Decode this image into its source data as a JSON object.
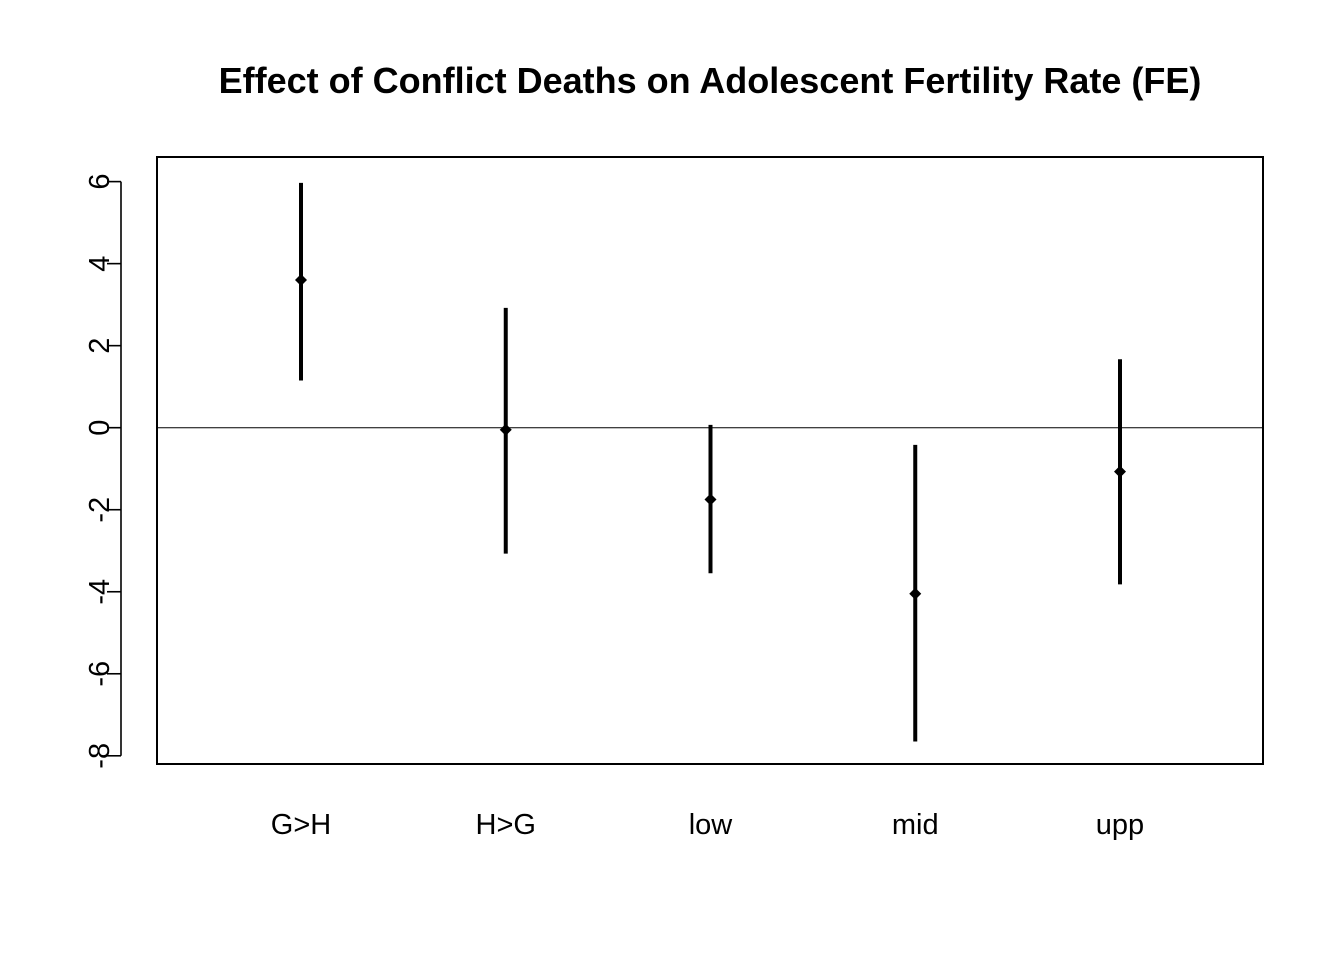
{
  "chart_data": {
    "type": "errorbar",
    "title": "Effect of Conflict Deaths on Adolescent Fertility Rate (FE)",
    "xlabel": "",
    "ylabel": "",
    "ylim": [
      -8.2,
      6.6
    ],
    "yticks": [
      6,
      4,
      2,
      0,
      -2,
      -4,
      -6,
      -8
    ],
    "ytick_labels": [
      "6",
      "4",
      "2",
      "0",
      "-2",
      "-4",
      "-6",
      "-8"
    ],
    "reference_line": 0,
    "grid": false,
    "categories": [
      "G>H",
      "H>G",
      "low",
      "mid",
      "upp"
    ],
    "estimates": [
      3.6,
      -0.05,
      -1.75,
      -4.05,
      -1.07
    ],
    "lower": [
      1.15,
      -3.07,
      -3.55,
      -7.65,
      -3.82
    ],
    "upper": [
      5.97,
      2.92,
      0.07,
      -0.42,
      1.67
    ],
    "colors": {
      "marks": "#000000",
      "reference": "#000000",
      "frame": "#000000"
    }
  }
}
